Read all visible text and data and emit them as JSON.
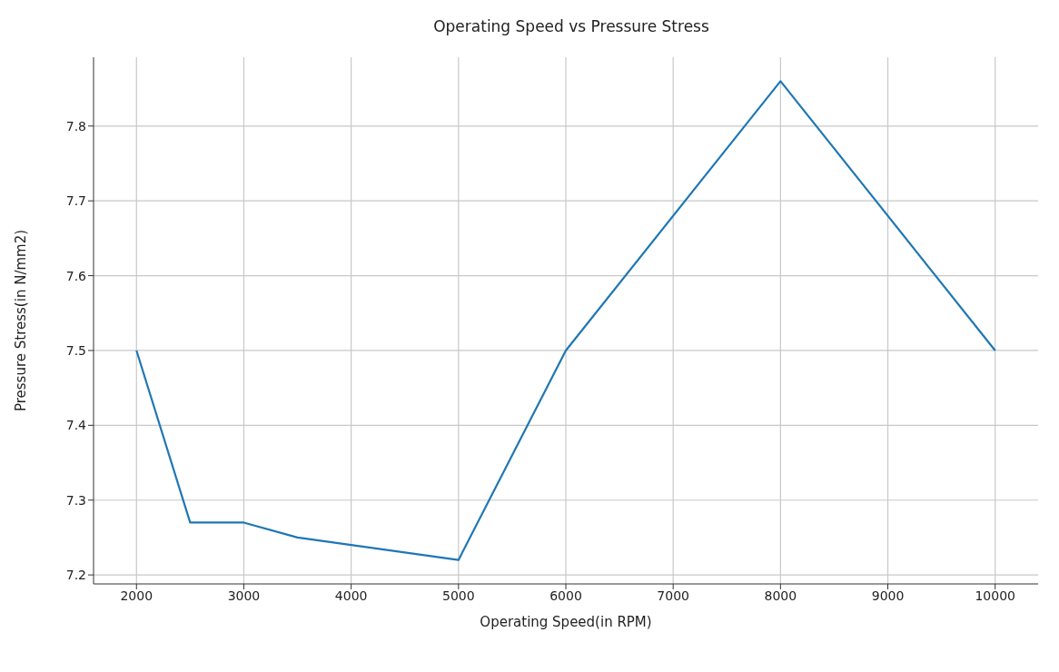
{
  "chart_data": {
    "type": "line",
    "title": "Operating Speed vs Pressure Stress",
    "xlabel": "Operating Speed(in RPM)",
    "ylabel": "Pressure Stress(in N/mm2)",
    "x": [
      2000,
      2500,
      3000,
      3500,
      5000,
      6000,
      8000,
      10000
    ],
    "series": [
      {
        "color": "#1f77b4",
        "values": [
          7.5,
          7.27,
          7.27,
          7.25,
          7.22,
          7.5,
          7.86,
          7.5
        ]
      }
    ],
    "xlim": [
      1600,
      10400
    ],
    "xticks": [
      2000,
      3000,
      4000,
      5000,
      6000,
      7000,
      8000,
      9000,
      10000
    ],
    "ylim": [
      7.188,
      7.892
    ],
    "yticks": [
      {
        "value": 7.2,
        "label": "7.2"
      },
      {
        "value": 7.3,
        "label": "7.3"
      },
      {
        "value": 7.4,
        "label": "7.4"
      },
      {
        "value": 7.5,
        "label": "7.5"
      },
      {
        "value": 7.6,
        "label": "7.6"
      },
      {
        "value": 7.7,
        "label": "7.7"
      },
      {
        "value": 7.8,
        "label": "7.8"
      }
    ],
    "grid": true,
    "legend": false,
    "marker": "none",
    "line_style": "solid"
  }
}
